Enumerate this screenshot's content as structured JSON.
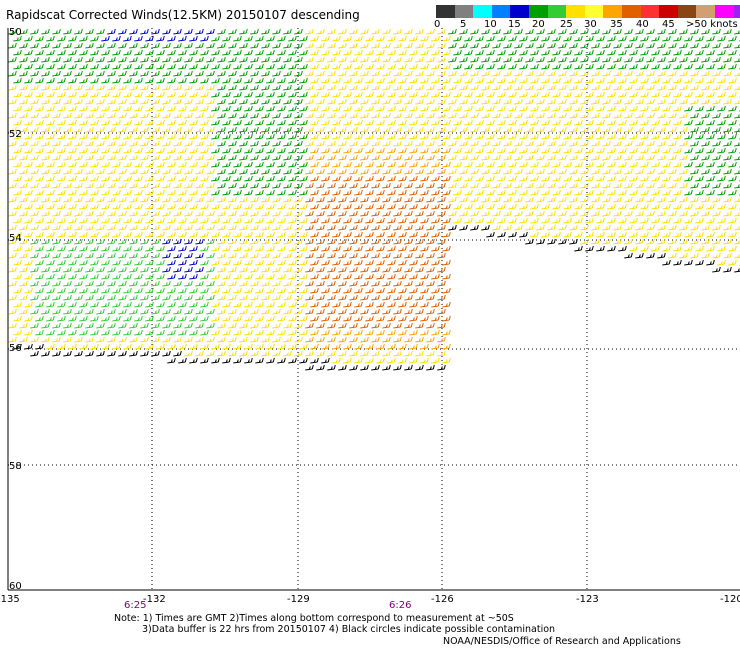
{
  "title": "Rapidscat Corrected Winds(12.5KM) 20150107 descending",
  "legend": {
    "labels": [
      "0",
      "5",
      "10",
      "15",
      "20",
      "25",
      "30",
      "35",
      "40",
      "45",
      ">50 knots"
    ],
    "colors": [
      "#333333",
      "#808080",
      "#00ffff",
      "#0080ff",
      "#0000cc",
      "#00a000",
      "#33cc33",
      "#ffe000",
      "#ffff33",
      "#ffa500",
      "#e06000",
      "#ff3030",
      "#cc0000",
      "#8b4513",
      "#d2a070",
      "#ff00ff",
      "#a020f0"
    ]
  },
  "axes": {
    "lon_labels": [
      "-135",
      "-132",
      "-129",
      "-126",
      "-123",
      "-120"
    ],
    "lat_labels": [
      "50",
      "52",
      "54",
      "56",
      "58",
      "60"
    ]
  },
  "times": [
    "6:25",
    "6:26"
  ],
  "notes": {
    "line1": "Note: 1) Times are GMT 2)Times along bottom correspond to measurement at ~50S",
    "line2": "3)Data buffer is 22 hrs from 20150107 4) Black circles indicate possible contamination",
    "credit": "NOAA/NESDIS/Office of Research and Applications"
  }
}
